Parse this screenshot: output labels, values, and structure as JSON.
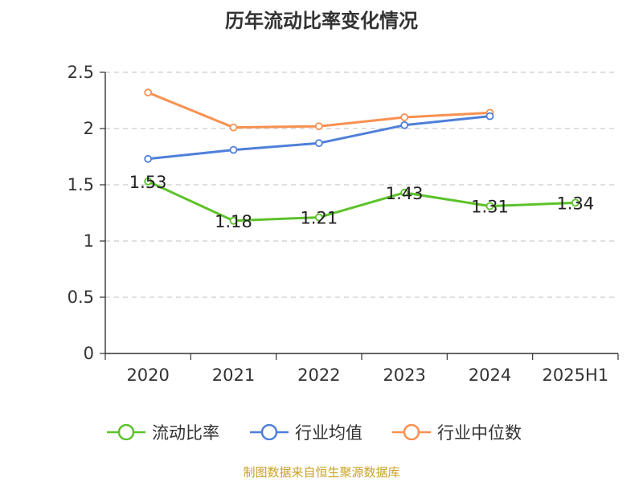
{
  "title": "历年流动比率变化情况",
  "source": "制图数据来自恒生聚源数据库",
  "chart_data": {
    "type": "line",
    "title": "历年流动比率变化情况",
    "categories": [
      "2020",
      "2021",
      "2022",
      "2023",
      "2024",
      "2025H1"
    ],
    "ylim": [
      0,
      2.5
    ],
    "yticks": [
      0,
      0.5,
      1,
      1.5,
      2,
      2.5
    ],
    "ytick_labels": [
      "0",
      "0.5",
      "1",
      "1.5",
      "2",
      "2.5"
    ],
    "grid": true,
    "legend_position": "bottom",
    "series": [
      {
        "name": "流动比率",
        "color": "#5cc22a",
        "values": [
          1.53,
          1.18,
          1.21,
          1.43,
          1.31,
          1.34
        ],
        "labels": [
          "1.53",
          "1.18",
          "1.21",
          "1.43",
          "1.31",
          "1.34"
        ]
      },
      {
        "name": "行业均值",
        "color": "#4f7fd9",
        "values": [
          1.73,
          1.81,
          1.87,
          2.03,
          2.11,
          null
        ]
      },
      {
        "name": "行业中位数",
        "color": "#f79150",
        "values": [
          2.32,
          2.01,
          2.02,
          2.1,
          2.14,
          null
        ]
      }
    ]
  }
}
